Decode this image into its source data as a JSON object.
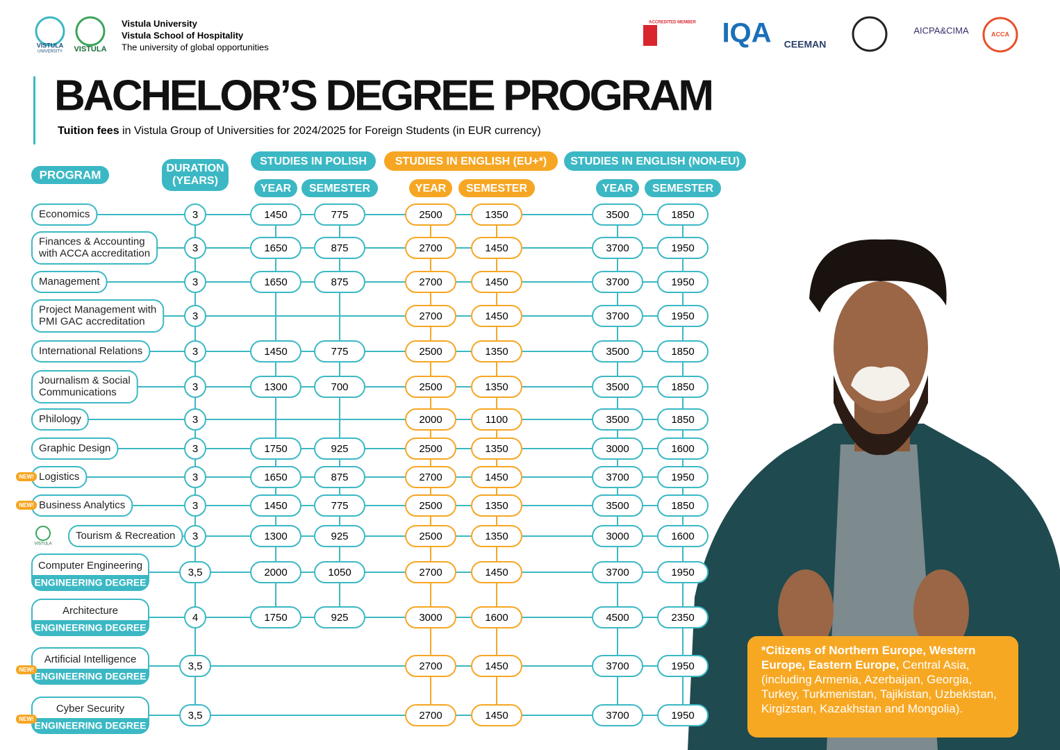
{
  "header": {
    "logos": {
      "vistula_university": [
        "VISTULA",
        "UNIVERSITY"
      ],
      "vistula_hospitality": "VISTULA"
    },
    "lines": [
      "Vistula University",
      "Vistula School of Hospitality",
      "The university of global opportunities"
    ],
    "accreditations": {
      "member": "ACCREDITED MEMBER",
      "iqa": "IQA",
      "ceeman": "CEEMAN",
      "aicpa": "AICPA&CIMA",
      "acca": "ACCA"
    }
  },
  "title": "BACHELOR’S DEGREE PROGRAM",
  "subtitle": {
    "bold": "Tuition fees",
    "rest": " in Vistula Group of Universities for 2024/2025 for Foreign Students (in EUR currency)"
  },
  "table": {
    "program_header": "PROGRAM",
    "duration_header": [
      "DURATION",
      "(YEARS)"
    ],
    "groups": [
      "STUDIES IN POLISH",
      "STUDIES IN ENGLISH (EU+*)",
      "STUDIES IN ENGLISH (NON-EU)"
    ],
    "subheaders": [
      "YEAR",
      "SEMESTER",
      "YEAR",
      "SEMESTER",
      "YEAR",
      "SEMESTER"
    ],
    "rows": [
      {
        "name": [
          "Economics"
        ],
        "duration": 3,
        "fees": [
          1450,
          775,
          2500,
          1350,
          3500,
          1850
        ]
      },
      {
        "name": [
          "Finances & Accounting",
          "with ACCA accreditation"
        ],
        "duration": 3,
        "fees": [
          1650,
          875,
          2700,
          1450,
          3700,
          1950
        ]
      },
      {
        "name": [
          "Management"
        ],
        "duration": 3,
        "fees": [
          1650,
          875,
          2700,
          1450,
          3700,
          1950
        ]
      },
      {
        "name": [
          "Project Management with",
          "PMI GAC accreditation"
        ],
        "duration": 3,
        "fees": [
          null,
          null,
          2700,
          1450,
          3700,
          1950
        ]
      },
      {
        "name": [
          "International Relations"
        ],
        "duration": 3,
        "fees": [
          1450,
          775,
          2500,
          1350,
          3500,
          1850
        ]
      },
      {
        "name": [
          "Journalism & Social",
          "Communications"
        ],
        "duration": 3,
        "fees": [
          1300,
          700,
          2500,
          1350,
          3500,
          1850
        ]
      },
      {
        "name": [
          "Philology"
        ],
        "duration": 3,
        "fees": [
          null,
          null,
          2000,
          1100,
          3500,
          1850
        ]
      },
      {
        "name": [
          "Graphic Design"
        ],
        "duration": 3,
        "fees": [
          1750,
          925,
          2500,
          1350,
          3000,
          1600
        ]
      },
      {
        "name": [
          "Logistics"
        ],
        "new": "NEW!",
        "duration": 3,
        "fees": [
          1650,
          875,
          2700,
          1450,
          3700,
          1950
        ]
      },
      {
        "name": [
          "Business Analytics"
        ],
        "new": "NEW!",
        "duration": 3,
        "fees": [
          1450,
          775,
          2500,
          1350,
          3500,
          1850
        ]
      },
      {
        "name": [
          "Tourism & Recreation"
        ],
        "logo": "VISTULA",
        "duration": 3,
        "fees": [
          1300,
          925,
          2500,
          1350,
          3000,
          1600
        ]
      },
      {
        "name": [
          "Computer Engineering"
        ],
        "badge": "ENGINEERING DEGREE",
        "duration": "3,5",
        "fees": [
          2000,
          1050,
          2700,
          1450,
          3700,
          1950
        ]
      },
      {
        "name": [
          "Architecture"
        ],
        "badge": "ENGINEERING DEGREE",
        "duration": 4,
        "fees": [
          1750,
          925,
          3000,
          1600,
          4500,
          2350
        ]
      },
      {
        "name": [
          "Artificial Intelligence"
        ],
        "new": "NEW!",
        "badge": "ENGINEERING DEGREE",
        "duration": "3,5",
        "fees": [
          null,
          null,
          2700,
          1450,
          3700,
          1950
        ]
      },
      {
        "name": [
          "Cyber Security"
        ],
        "new": "NEW!",
        "badge": "ENGINEERING DEGREE",
        "duration": "3,5",
        "fees": [
          null,
          null,
          2700,
          1450,
          3700,
          1950
        ]
      }
    ]
  },
  "footnote": {
    "bold": "*Citizens of Northern Europe, Western Europe, Eastern Europe,",
    "rest": " Central Asia, (including Armenia, Azerbaijan, Georgia, Turkey, Turkmenistan, Tajikistan, Uzbekistan, Kirgizstan, Kazakhstan and Mongolia)."
  }
}
